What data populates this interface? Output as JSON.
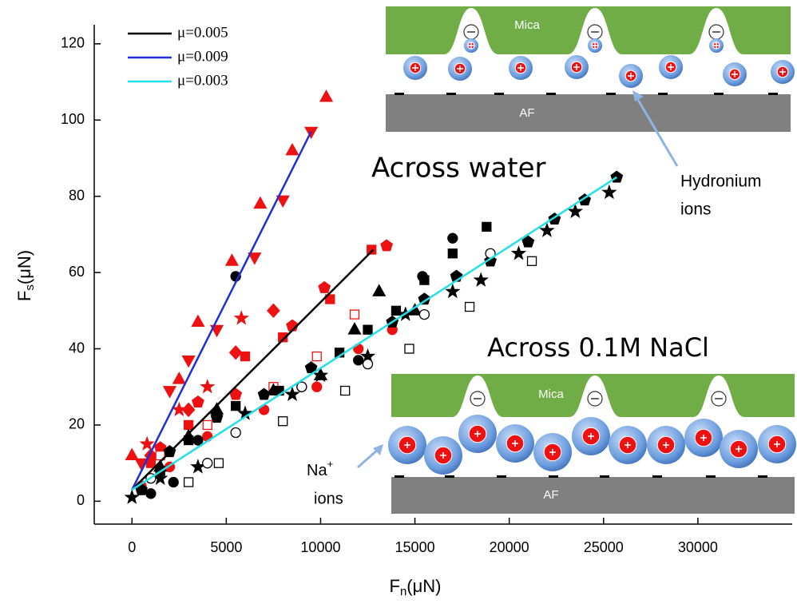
{
  "chart_data": {
    "type": "scatter",
    "xlabel": [
      "F",
      "n",
      "(μN)"
    ],
    "ylabel": [
      "F",
      "s",
      "(μN)"
    ],
    "xlim": [
      -2000,
      35000
    ],
    "ylim": [
      -6,
      125
    ],
    "xticks": [
      0,
      5000,
      10000,
      15000,
      20000,
      25000,
      30000
    ],
    "yticks": [
      0,
      20,
      40,
      60,
      80,
      100,
      120
    ],
    "fits": [
      {
        "name": "μ=0.005",
        "color": "#000000",
        "x": [
          0,
          12800
        ],
        "values": [
          3,
          66
        ]
      },
      {
        "name": "μ=0.009",
        "color": "#1f2fd6",
        "x": [
          0,
          9500
        ],
        "values": [
          3,
          97
        ]
      },
      {
        "name": "μ=0.003",
        "color": "#22e0e8",
        "x": [
          0,
          25700
        ],
        "values": [
          3,
          85
        ]
      }
    ],
    "series": [
      {
        "color": "#ee1111",
        "marker": "triangle",
        "filled": true,
        "x": [
          0,
          2500,
          3500,
          5300,
          6800,
          8500,
          10300
        ],
        "values": [
          12,
          32,
          47,
          63,
          78,
          92,
          106
        ]
      },
      {
        "color": "#ee1111",
        "marker": "triangle-down",
        "filled": true,
        "x": [
          500,
          2000,
          3000,
          4500,
          6500,
          8000,
          9500
        ],
        "values": [
          10,
          29,
          37,
          45,
          64,
          79,
          97
        ]
      },
      {
        "color": "#ee1111",
        "marker": "star",
        "filled": true,
        "x": [
          800,
          2500,
          4000,
          5800
        ],
        "values": [
          15,
          24,
          30,
          48
        ]
      },
      {
        "color": "#ee1111",
        "marker": "diamond",
        "filled": true,
        "x": [
          1000,
          3000,
          5500,
          7500
        ],
        "values": [
          12,
          24,
          39,
          50
        ]
      },
      {
        "color": "#ee1111",
        "marker": "pentagon",
        "filled": true,
        "x": [
          1500,
          3500,
          5500,
          8500,
          10200,
          13500
        ],
        "values": [
          14,
          26,
          28,
          46,
          56,
          67
        ]
      },
      {
        "color": "#ee1111",
        "marker": "square",
        "filled": true,
        "x": [
          1000,
          3000,
          6000,
          8000,
          10500,
          12700
        ],
        "values": [
          10,
          20,
          38,
          43,
          53,
          66
        ]
      },
      {
        "color": "#ee1111",
        "marker": "circle",
        "filled": true,
        "x": [
          500,
          2000,
          4000,
          7000,
          9800,
          12000,
          13800
        ],
        "values": [
          4,
          9,
          17,
          24,
          30,
          40,
          45
        ]
      },
      {
        "color": "#ee1111",
        "marker": "square",
        "filled": false,
        "x": [
          1500,
          4000,
          7500,
          9800,
          11800
        ],
        "values": [
          12,
          20,
          30,
          38,
          49
        ]
      },
      {
        "color": "#000000",
        "marker": "circle",
        "filled": true,
        "x": [
          500,
          1000,
          2200,
          3500,
          5500,
          9000,
          12000,
          15400,
          17000
        ],
        "values": [
          3,
          2,
          5,
          16,
          59,
          30,
          37,
          59,
          69
        ]
      },
      {
        "color": "#000000",
        "marker": "square",
        "filled": true,
        "x": [
          1500,
          3000,
          5500,
          7800,
          11000,
          12500,
          14000,
          15500,
          17000,
          18800
        ],
        "values": [
          8,
          16,
          25,
          29,
          39,
          45,
          50,
          58,
          65,
          72
        ]
      },
      {
        "color": "#000000",
        "marker": "triangle",
        "filled": true,
        "x": [
          1500,
          3000,
          4500,
          7500,
          10000,
          11800,
          13100,
          15000
        ],
        "values": [
          9,
          17,
          24,
          29,
          33,
          45,
          55,
          50
        ]
      },
      {
        "color": "#000000",
        "marker": "pentagon",
        "filled": true,
        "x": [
          500,
          2000,
          4500,
          7000,
          9500,
          13800,
          15500,
          17200,
          19000,
          21000,
          22400,
          24000,
          25700
        ],
        "values": [
          3,
          13,
          22,
          28,
          35,
          47,
          53,
          59,
          63,
          68,
          74,
          79,
          85
        ]
      },
      {
        "color": "#000000",
        "marker": "star",
        "filled": true,
        "x": [
          0,
          1500,
          3500,
          6000,
          8500,
          10000,
          12500,
          14500,
          17000,
          18500,
          20500,
          22000,
          23500,
          25300
        ],
        "values": [
          1,
          6,
          9,
          23,
          28,
          33,
          38,
          49,
          55,
          58,
          65,
          71,
          76,
          81
        ]
      },
      {
        "color": "#000000",
        "marker": "circle",
        "filled": false,
        "x": [
          1000,
          4000,
          5500,
          9000,
          12500,
          15500,
          19000
        ],
        "values": [
          6,
          10,
          18,
          30,
          36,
          49,
          65
        ]
      },
      {
        "color": "#000000",
        "marker": "square",
        "filled": false,
        "x": [
          3000,
          4600,
          8000,
          11300,
          14700,
          17900,
          21200
        ],
        "values": [
          5,
          10,
          21,
          29,
          40,
          51,
          63
        ]
      }
    ],
    "annotations": {
      "water": "Across water",
      "nacl": "Across 0.1M NaCl"
    },
    "insets": [
      {
        "top": "Mica",
        "bottom": "AF",
        "ions": [
          "Hydronium",
          "ions"
        ]
      },
      {
        "top": "Mica",
        "bottom": "AF",
        "ions": [
          "Na",
          "+",
          "ions"
        ]
      }
    ]
  }
}
